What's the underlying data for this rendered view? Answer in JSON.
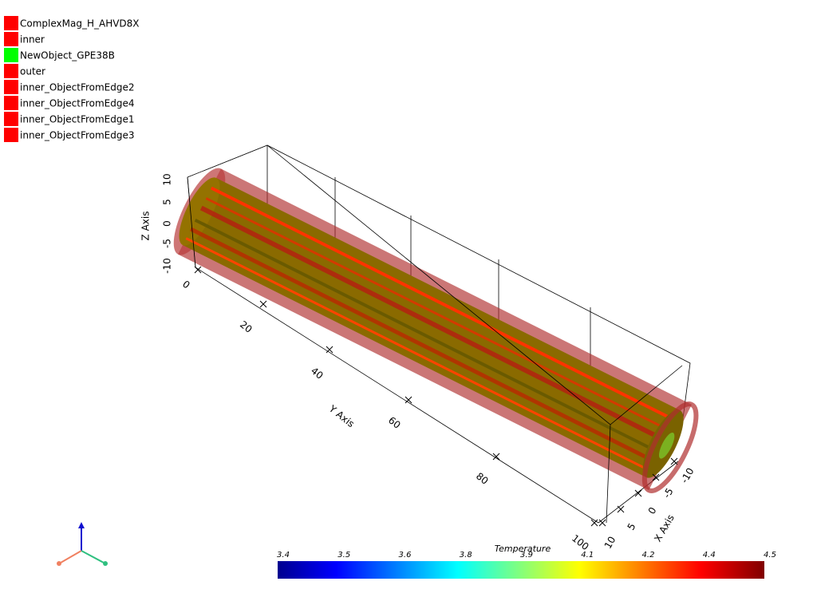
{
  "legend": [
    {
      "label": "ComplexMag_H_AHVD8X",
      "color": "#ff0000"
    },
    {
      "label": "inner",
      "color": "#ff0000"
    },
    {
      "label": "NewObject_GPE38B",
      "color": "#00ff00"
    },
    {
      "label": "outer",
      "color": "#ff0000"
    },
    {
      "label": "inner_ObjectFromEdge2",
      "color": "#ff0000"
    },
    {
      "label": "inner_ObjectFromEdge4",
      "color": "#ff0000"
    },
    {
      "label": "inner_ObjectFromEdge1",
      "color": "#ff0000"
    },
    {
      "label": "inner_ObjectFromEdge3",
      "color": "#ff0000"
    }
  ],
  "axes": {
    "x_label": "X Axis",
    "y_label": "Y Axis",
    "z_label": "Z Axis",
    "x_ticks": [
      "-10",
      "-5",
      "0",
      "5",
      "10"
    ],
    "y_ticks": [
      "0",
      "20",
      "40",
      "60",
      "80",
      "100"
    ],
    "z_ticks": [
      "10",
      "5",
      "0",
      "-5",
      "-10"
    ]
  },
  "colorbar": {
    "title": "Temperature",
    "ticks": [
      "3.4",
      "3.5",
      "3.6",
      "3.8",
      "3.9",
      "4.1",
      "4.2",
      "4.4",
      "4.5"
    ]
  }
}
